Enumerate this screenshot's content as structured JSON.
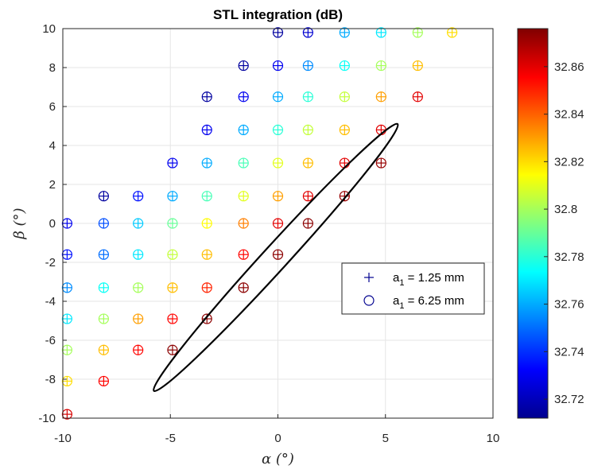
{
  "chart_data": {
    "type": "scatter",
    "title": "STL integration (dB)",
    "xlabel": "α (°)",
    "ylabel": "β (°)",
    "xlim": [
      -10,
      10
    ],
    "ylim": [
      -10,
      10
    ],
    "xticks": [
      "-10",
      "-5",
      "0",
      "5",
      "10"
    ],
    "yticks": [
      "10",
      "8",
      "6",
      "4",
      "2",
      "0",
      "-2",
      "-4",
      "-6",
      "-8",
      "-10"
    ],
    "grid": true,
    "colorbar": {
      "colormap": "jet",
      "range": [
        32.712,
        32.876
      ],
      "ticks": [
        "32.86",
        "32.84",
        "32.82",
        "32.8",
        "32.78",
        "32.76",
        "32.74",
        "32.72"
      ]
    },
    "legend": {
      "location": "right-middle",
      "entries": [
        {
          "marker": "+",
          "label_main": "a",
          "label_sub": "1",
          "label_rest": " = 1.25 mm"
        },
        {
          "marker": "o",
          "label_main": "a",
          "label_sub": "1",
          "label_rest": " = 6.25 mm"
        }
      ]
    },
    "annotation": {
      "shape": "ellipse",
      "center": [
        -0.1,
        -1.75
      ],
      "angle_deg": 47.6,
      "semi_major": 8.4,
      "semi_minor": 0.58
    },
    "series": [
      {
        "marker": "circle-plus",
        "points": [
          {
            "x": 0,
            "y": 9.8,
            "v": 32.717
          },
          {
            "x": 1.4,
            "y": 9.8,
            "v": 32.725
          },
          {
            "x": 3.1,
            "y": 9.8,
            "v": 32.76
          },
          {
            "x": 4.8,
            "y": 9.8,
            "v": 32.77
          },
          {
            "x": 6.5,
            "y": 9.8,
            "v": 32.8
          },
          {
            "x": 8.1,
            "y": 9.8,
            "v": 32.82
          },
          {
            "x": -1.6,
            "y": 8.1,
            "v": 32.717
          },
          {
            "x": 0,
            "y": 8.1,
            "v": 32.73
          },
          {
            "x": 1.4,
            "y": 8.1,
            "v": 32.755
          },
          {
            "x": 3.1,
            "y": 8.1,
            "v": 32.775
          },
          {
            "x": 4.8,
            "y": 8.1,
            "v": 32.8
          },
          {
            "x": 6.5,
            "y": 8.1,
            "v": 32.825
          },
          {
            "x": -3.3,
            "y": 6.5,
            "v": 32.717
          },
          {
            "x": -1.6,
            "y": 6.5,
            "v": 32.73
          },
          {
            "x": 0,
            "y": 6.5,
            "v": 32.76
          },
          {
            "x": 1.4,
            "y": 6.5,
            "v": 32.78
          },
          {
            "x": 3.1,
            "y": 6.5,
            "v": 32.805
          },
          {
            "x": 4.8,
            "y": 6.5,
            "v": 32.83
          },
          {
            "x": 6.5,
            "y": 6.5,
            "v": 32.86
          },
          {
            "x": -3.3,
            "y": 4.8,
            "v": 32.73
          },
          {
            "x": -1.6,
            "y": 4.8,
            "v": 32.76
          },
          {
            "x": 0,
            "y": 4.8,
            "v": 32.78
          },
          {
            "x": 1.4,
            "y": 4.8,
            "v": 32.805
          },
          {
            "x": 3.1,
            "y": 4.8,
            "v": 32.825
          },
          {
            "x": 4.8,
            "y": 4.8,
            "v": 32.86
          },
          {
            "x": -4.9,
            "y": 3.1,
            "v": 32.73
          },
          {
            "x": -3.3,
            "y": 3.1,
            "v": 32.76
          },
          {
            "x": -1.6,
            "y": 3.1,
            "v": 32.785
          },
          {
            "x": 0,
            "y": 3.1,
            "v": 32.81
          },
          {
            "x": 1.4,
            "y": 3.1,
            "v": 32.825
          },
          {
            "x": 3.1,
            "y": 3.1,
            "v": 32.86
          },
          {
            "x": 4.8,
            "y": 3.1,
            "v": 32.872
          },
          {
            "x": -8.1,
            "y": 1.4,
            "v": 32.717
          },
          {
            "x": -6.5,
            "y": 1.4,
            "v": 32.735
          },
          {
            "x": -4.9,
            "y": 1.4,
            "v": 32.76
          },
          {
            "x": -3.3,
            "y": 1.4,
            "v": 32.785
          },
          {
            "x": -1.6,
            "y": 1.4,
            "v": 32.81
          },
          {
            "x": 0,
            "y": 1.4,
            "v": 32.83
          },
          {
            "x": 1.4,
            "y": 1.4,
            "v": 32.86
          },
          {
            "x": 3.1,
            "y": 1.4,
            "v": 32.872
          },
          {
            "x": -9.8,
            "y": 0,
            "v": 32.73
          },
          {
            "x": -8.1,
            "y": 0,
            "v": 32.745
          },
          {
            "x": -6.5,
            "y": 0,
            "v": 32.765
          },
          {
            "x": -4.9,
            "y": 0,
            "v": 32.79
          },
          {
            "x": -3.3,
            "y": 0,
            "v": 32.815
          },
          {
            "x": -1.6,
            "y": 0,
            "v": 32.835
          },
          {
            "x": 0,
            "y": 0,
            "v": 32.86
          },
          {
            "x": 1.4,
            "y": 0,
            "v": 32.874
          },
          {
            "x": -9.8,
            "y": -1.6,
            "v": 32.735
          },
          {
            "x": -8.1,
            "y": -1.6,
            "v": 32.75
          },
          {
            "x": -6.5,
            "y": -1.6,
            "v": 32.77
          },
          {
            "x": -4.9,
            "y": -1.6,
            "v": 32.805
          },
          {
            "x": -3.3,
            "y": -1.6,
            "v": 32.825
          },
          {
            "x": -1.6,
            "y": -1.6,
            "v": 32.855
          },
          {
            "x": 0,
            "y": -1.6,
            "v": 32.874
          },
          {
            "x": -9.8,
            "y": -3.3,
            "v": 32.755
          },
          {
            "x": -8.1,
            "y": -3.3,
            "v": 32.775
          },
          {
            "x": -6.5,
            "y": -3.3,
            "v": 32.8
          },
          {
            "x": -4.9,
            "y": -3.3,
            "v": 32.825
          },
          {
            "x": -3.3,
            "y": -3.3,
            "v": 32.85
          },
          {
            "x": -1.6,
            "y": -3.3,
            "v": 32.874
          },
          {
            "x": -9.8,
            "y": -4.9,
            "v": 32.77
          },
          {
            "x": -8.1,
            "y": -4.9,
            "v": 32.8
          },
          {
            "x": -6.5,
            "y": -4.9,
            "v": 32.83
          },
          {
            "x": -4.9,
            "y": -4.9,
            "v": 32.855
          },
          {
            "x": -3.3,
            "y": -4.9,
            "v": 32.874
          },
          {
            "x": -9.8,
            "y": -6.5,
            "v": 32.8
          },
          {
            "x": -8.1,
            "y": -6.5,
            "v": 32.825
          },
          {
            "x": -6.5,
            "y": -6.5,
            "v": 32.855
          },
          {
            "x": -4.9,
            "y": -6.5,
            "v": 32.874
          },
          {
            "x": -9.8,
            "y": -8.1,
            "v": 32.82
          },
          {
            "x": -8.1,
            "y": -8.1,
            "v": 32.855
          },
          {
            "x": -9.8,
            "y": -9.8,
            "v": 32.862
          }
        ]
      }
    ]
  }
}
